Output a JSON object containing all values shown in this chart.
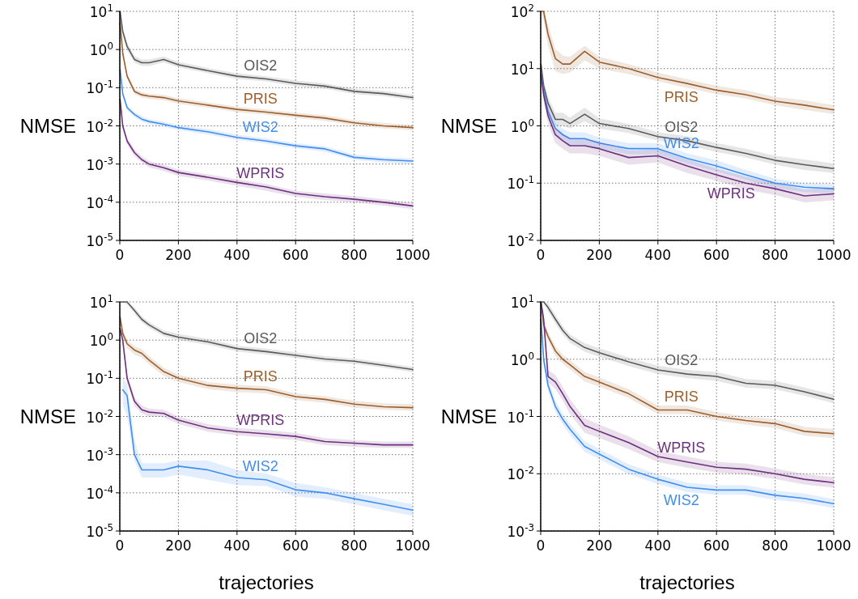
{
  "chart_data": [
    {
      "type": "line",
      "ylabel": "NMSE",
      "log": "y",
      "grid": true,
      "line_style": "solid",
      "xlim": [
        0,
        1000
      ],
      "xticks": [
        0,
        200,
        400,
        600,
        800,
        1000
      ],
      "ylim": [
        1e-05,
        10
      ],
      "yticks": [
        {
          "value": 1e-05,
          "label": "10$^{-5}$"
        },
        {
          "value": 0.0001,
          "label": "10$^{-4}$"
        },
        {
          "value": 0.001,
          "label": "10$^{-3}$"
        },
        {
          "value": 0.01,
          "label": "10$^{-2}$"
        },
        {
          "value": 0.1,
          "label": "10$^{-1}$"
        },
        {
          "value": 1,
          "label": "10$^{0}$"
        },
        {
          "value": 10,
          "label": "10$^{1}$"
        }
      ],
      "x": [
        1,
        10,
        25,
        50,
        75,
        100,
        150,
        200,
        300,
        400,
        500,
        600,
        700,
        800,
        900,
        1000
      ],
      "series": [
        {
          "name": "OIS2",
          "color": "#5a5a5a",
          "values": [
            10,
            3,
            1.2,
            0.55,
            0.45,
            0.45,
            0.55,
            0.4,
            0.28,
            0.2,
            0.17,
            0.13,
            0.11,
            0.08,
            0.07,
            0.055
          ],
          "lower": [
            8,
            2.4,
            0.95,
            0.45,
            0.37,
            0.37,
            0.46,
            0.34,
            0.24,
            0.17,
            0.145,
            0.11,
            0.094,
            0.068,
            0.06,
            0.047
          ],
          "upper": [
            10,
            3.7,
            1.5,
            0.68,
            0.55,
            0.55,
            0.66,
            0.48,
            0.33,
            0.24,
            0.2,
            0.155,
            0.13,
            0.095,
            0.083,
            0.065
          ]
        },
        {
          "name": "PRIS",
          "color": "#9c5f2c",
          "values": [
            5,
            0.8,
            0.2,
            0.08,
            0.065,
            0.06,
            0.055,
            0.045,
            0.035,
            0.027,
            0.023,
            0.019,
            0.016,
            0.012,
            0.01,
            0.009
          ],
          "lower": [
            4,
            0.65,
            0.17,
            0.068,
            0.055,
            0.051,
            0.047,
            0.038,
            0.03,
            0.023,
            0.0195,
            0.016,
            0.0136,
            0.0102,
            0.0085,
            0.0076
          ],
          "upper": [
            6,
            0.95,
            0.24,
            0.094,
            0.076,
            0.07,
            0.065,
            0.053,
            0.041,
            0.032,
            0.027,
            0.022,
            0.019,
            0.014,
            0.012,
            0.0106
          ]
        },
        {
          "name": "WIS2",
          "color": "#3f8ef0",
          "values": [
            0.3,
            0.07,
            0.03,
            0.02,
            0.015,
            0.013,
            0.011,
            0.009,
            0.007,
            0.005,
            0.004,
            0.003,
            0.0025,
            0.0015,
            0.0013,
            0.0012
          ],
          "lower": [
            0.25,
            0.06,
            0.026,
            0.017,
            0.013,
            0.011,
            0.0094,
            0.0077,
            0.006,
            0.0043,
            0.0034,
            0.0026,
            0.0021,
            0.0013,
            0.0011,
            0.001
          ],
          "upper": [
            0.36,
            0.083,
            0.035,
            0.023,
            0.018,
            0.015,
            0.013,
            0.0105,
            0.0082,
            0.0059,
            0.0047,
            0.0035,
            0.0029,
            0.0018,
            0.0015,
            0.0014
          ]
        },
        {
          "name": "WPRIS",
          "color": "#6e2f7e",
          "values": [
            0.05,
            0.01,
            0.004,
            0.002,
            0.0013,
            0.001,
            0.0008,
            0.0006,
            0.00045,
            0.00033,
            0.00025,
            0.00017,
            0.00014,
            0.00012,
            0.0001,
            8e-05
          ],
          "lower": [
            0.041,
            0.0082,
            0.0033,
            0.0016,
            0.0011,
            0.00082,
            0.00066,
            0.00049,
            0.00037,
            0.00027,
            0.0002,
            0.00014,
            0.000115,
            0.0001,
            8.2e-05,
            6.6e-05
          ],
          "upper": [
            0.06,
            0.012,
            0.0048,
            0.0024,
            0.0016,
            0.0012,
            0.00096,
            0.00072,
            0.00054,
            0.0004,
            0.0003,
            0.0002,
            0.00017,
            0.000144,
            0.00012,
            9.6e-05
          ]
        }
      ]
    },
    {
      "type": "line",
      "ylabel": "NMSE",
      "log": "y",
      "grid": true,
      "line_style": "solid",
      "xlim": [
        0,
        1000
      ],
      "xticks": [
        0,
        200,
        400,
        600,
        800,
        1000
      ],
      "ylim": [
        0.01,
        100
      ],
      "yticks": [
        {
          "value": 0.01,
          "label": "10$^{-2}$"
        },
        {
          "value": 0.1,
          "label": "10$^{-1}$"
        },
        {
          "value": 1,
          "label": "10$^{0}$"
        },
        {
          "value": 10,
          "label": "10$^{1}$"
        },
        {
          "value": 100,
          "label": "10$^{2}$"
        }
      ],
      "x": [
        1,
        10,
        25,
        50,
        75,
        100,
        150,
        200,
        300,
        400,
        500,
        600,
        700,
        800,
        900,
        1000
      ],
      "series": [
        {
          "name": "PRIS",
          "color": "#9c5f2c",
          "values": [
            100,
            100,
            40,
            15,
            12,
            12,
            20,
            13,
            10,
            7,
            5.5,
            4.2,
            3.5,
            2.7,
            2.3,
            1.9
          ],
          "lower": [
            100,
            70,
            25,
            9,
            8,
            8.5,
            14,
            10,
            8,
            6,
            4.6,
            3.6,
            3,
            2.3,
            1.9,
            1.6
          ],
          "upper": [
            100,
            100,
            60,
            22,
            17,
            16,
            25,
            16,
            12,
            8.5,
            6.5,
            5,
            4.2,
            3.2,
            2.8,
            2.3
          ]
        },
        {
          "name": "OIS2",
          "color": "#5a5a5a",
          "values": [
            12,
            5,
            2.5,
            1.3,
            1.3,
            1.1,
            1.6,
            1.1,
            0.9,
            0.65,
            0.55,
            0.42,
            0.33,
            0.25,
            0.21,
            0.18
          ],
          "lower": [
            10,
            4,
            1.9,
            1,
            1,
            0.9,
            1.2,
            0.9,
            0.75,
            0.55,
            0.46,
            0.35,
            0.28,
            0.21,
            0.17,
            0.15
          ],
          "upper": [
            14,
            6.2,
            3.2,
            1.7,
            1.7,
            1.4,
            2.1,
            1.35,
            1.08,
            0.78,
            0.66,
            0.5,
            0.4,
            0.3,
            0.26,
            0.22
          ]
        },
        {
          "name": "WIS2",
          "color": "#3f8ef0",
          "values": [
            9,
            4,
            1.8,
            0.9,
            0.7,
            0.6,
            0.6,
            0.5,
            0.4,
            0.4,
            0.27,
            0.2,
            0.14,
            0.1,
            0.085,
            0.08
          ],
          "lower": [
            7.5,
            3.2,
            1.4,
            0.7,
            0.55,
            0.47,
            0.47,
            0.4,
            0.32,
            0.32,
            0.22,
            0.16,
            0.115,
            0.083,
            0.07,
            0.066
          ],
          "upper": [
            11,
            5,
            2.3,
            1.15,
            0.9,
            0.77,
            0.77,
            0.63,
            0.5,
            0.5,
            0.33,
            0.25,
            0.17,
            0.12,
            0.1,
            0.097
          ]
        },
        {
          "name": "WPRIS",
          "color": "#6e2f7e",
          "values": [
            8,
            3.5,
            1.5,
            0.7,
            0.55,
            0.45,
            0.45,
            0.4,
            0.28,
            0.3,
            0.2,
            0.14,
            0.1,
            0.08,
            0.06,
            0.065
          ],
          "lower": [
            6.5,
            2.7,
            1.1,
            0.5,
            0.4,
            0.33,
            0.33,
            0.3,
            0.21,
            0.23,
            0.15,
            0.11,
            0.077,
            0.062,
            0.046,
            0.05
          ],
          "upper": [
            10,
            4.5,
            2,
            0.95,
            0.75,
            0.6,
            0.6,
            0.53,
            0.37,
            0.39,
            0.26,
            0.18,
            0.13,
            0.1,
            0.078,
            0.084
          ]
        }
      ]
    },
    {
      "type": "line",
      "ylabel": "NMSE",
      "xlabel": "trajectories",
      "log": "y",
      "grid": true,
      "line_style": "solid",
      "xlim": [
        0,
        1000
      ],
      "xticks": [
        0,
        200,
        400,
        600,
        800,
        1000
      ],
      "ylim": [
        1e-05,
        10
      ],
      "yticks": [
        {
          "value": 1e-05,
          "label": "10$^{-5}$"
        },
        {
          "value": 0.0001,
          "label": "10$^{-4}$"
        },
        {
          "value": 0.001,
          "label": "10$^{-3}$"
        },
        {
          "value": 0.01,
          "label": "10$^{-2}$"
        },
        {
          "value": 0.1,
          "label": "10$^{-1}$"
        },
        {
          "value": 1,
          "label": "10$^{0}$"
        },
        {
          "value": 10,
          "label": "10$^{1}$"
        }
      ],
      "x": [
        1,
        10,
        25,
        50,
        75,
        100,
        150,
        200,
        300,
        400,
        500,
        600,
        700,
        800,
        900,
        1000
      ],
      "series": [
        {
          "name": "OIS2",
          "color": "#5a5a5a",
          "values": [
            10,
            10,
            10,
            6,
            3.5,
            2.5,
            1.5,
            1.2,
            0.9,
            0.6,
            0.5,
            0.4,
            0.32,
            0.28,
            0.22,
            0.17
          ],
          "lower": [
            10,
            10,
            8.5,
            5,
            2.9,
            2.1,
            1.25,
            1,
            0.76,
            0.5,
            0.42,
            0.34,
            0.27,
            0.24,
            0.19,
            0.145
          ],
          "upper": [
            10,
            10,
            10,
            7.2,
            4.2,
            3,
            1.8,
            1.45,
            1.08,
            0.72,
            0.6,
            0.48,
            0.38,
            0.33,
            0.26,
            0.2
          ]
        },
        {
          "name": "PRIS",
          "color": "#9c5f2c",
          "values": [
            4,
            1.5,
            0.8,
            0.55,
            0.45,
            0.3,
            0.15,
            0.1,
            0.065,
            0.055,
            0.05,
            0.033,
            0.028,
            0.021,
            0.018,
            0.017
          ],
          "lower": [
            3.2,
            1.2,
            0.62,
            0.42,
            0.35,
            0.23,
            0.115,
            0.08,
            0.052,
            0.044,
            0.04,
            0.027,
            0.023,
            0.017,
            0.015,
            0.014
          ],
          "upper": [
            5,
            1.9,
            1,
            0.7,
            0.58,
            0.38,
            0.19,
            0.125,
            0.08,
            0.068,
            0.062,
            0.04,
            0.034,
            0.026,
            0.022,
            0.021
          ]
        },
        {
          "name": "WPRIS",
          "color": "#6e2f7e",
          "values": [
            2,
            1,
            0.1,
            0.025,
            0.015,
            0.013,
            0.012,
            0.008,
            0.005,
            0.004,
            0.0035,
            0.003,
            0.0022,
            0.002,
            0.0018,
            0.0018
          ],
          "lower": [
            1.6,
            0.8,
            0.075,
            0.019,
            0.012,
            0.01,
            0.0095,
            0.0064,
            0.004,
            0.0032,
            0.0028,
            0.0024,
            0.0018,
            0.0016,
            0.0015,
            0.0015
          ],
          "upper": [
            2.5,
            1.25,
            0.13,
            0.032,
            0.019,
            0.016,
            0.015,
            0.01,
            0.0063,
            0.005,
            0.0044,
            0.0037,
            0.0027,
            0.0024,
            0.0022,
            0.0022
          ]
        },
        {
          "name": "WIS2",
          "color": "#3f8ef0",
          "values": [
            null,
            0.05,
            0.035,
            0.001,
            0.0004,
            0.0004,
            0.0004,
            0.0005,
            0.0004,
            0.00025,
            0.00022,
            0.00012,
            0.0001,
            7e-05,
            5e-05,
            3.5e-05
          ],
          "lower": [
            null,
            0.02,
            0.01,
            0.0007,
            0.00025,
            0.00025,
            0.00025,
            0.0003,
            0.00022,
            0.00016,
            0.00015,
            8e-05,
            7e-05,
            5e-05,
            3.5e-05,
            2.5e-05
          ],
          "upper": [
            null,
            0.1,
            0.07,
            0.0025,
            0.0006,
            0.0006,
            0.0006,
            0.0007,
            0.0007,
            0.0004,
            0.00032,
            0.00018,
            0.00014,
            0.0001,
            7e-05,
            5e-05
          ]
        }
      ]
    },
    {
      "type": "line",
      "ylabel": "NMSE",
      "xlabel": "trajectories",
      "log": "y",
      "grid": true,
      "line_style": "solid",
      "xlim": [
        0,
        1000
      ],
      "xticks": [
        0,
        200,
        400,
        600,
        800,
        1000
      ],
      "ylim": [
        0.001,
        10
      ],
      "yticks": [
        {
          "value": 0.001,
          "label": "10$^{-3}$"
        },
        {
          "value": 0.01,
          "label": "10$^{-2}$"
        },
        {
          "value": 0.1,
          "label": "10$^{-1}$"
        },
        {
          "value": 1,
          "label": "10$^{0}$"
        },
        {
          "value": 10,
          "label": "10$^{1}$"
        }
      ],
      "x": [
        1,
        10,
        25,
        50,
        75,
        100,
        150,
        200,
        300,
        400,
        500,
        600,
        700,
        800,
        900,
        1000
      ],
      "series": [
        {
          "name": "OIS2",
          "color": "#5a5a5a",
          "values": [
            10,
            10,
            8,
            5,
            3.2,
            2.3,
            1.6,
            1.3,
            0.9,
            0.65,
            0.55,
            0.5,
            0.38,
            0.35,
            0.27,
            0.2
          ],
          "lower": [
            10,
            10,
            6.8,
            4.2,
            2.7,
            1.95,
            1.35,
            1.1,
            0.76,
            0.55,
            0.47,
            0.42,
            0.32,
            0.3,
            0.23,
            0.17
          ],
          "upper": [
            10,
            10,
            9.5,
            6,
            3.8,
            2.7,
            1.9,
            1.55,
            1.07,
            0.77,
            0.65,
            0.6,
            0.45,
            0.42,
            0.32,
            0.24
          ]
        },
        {
          "name": "PRIS",
          "color": "#9c5f2c",
          "values": [
            10,
            4,
            2.5,
            1.4,
            1,
            0.8,
            0.5,
            0.4,
            0.25,
            0.13,
            0.13,
            0.1,
            0.085,
            0.075,
            0.055,
            0.05
          ],
          "lower": [
            10,
            3.3,
            2.1,
            1.15,
            0.83,
            0.66,
            0.41,
            0.33,
            0.21,
            0.11,
            0.11,
            0.085,
            0.072,
            0.063,
            0.046,
            0.042
          ],
          "upper": [
            10,
            4.8,
            3,
            1.7,
            1.2,
            0.97,
            0.6,
            0.48,
            0.3,
            0.155,
            0.155,
            0.12,
            0.1,
            0.09,
            0.066,
            0.06
          ]
        },
        {
          "name": "WPRIS",
          "color": "#6e2f7e",
          "values": [
            10,
            5,
            0.5,
            0.4,
            0.25,
            0.15,
            0.07,
            0.055,
            0.035,
            0.02,
            0.016,
            0.013,
            0.012,
            0.01,
            0.008,
            0.007
          ],
          "lower": [
            10,
            4,
            0.4,
            0.3,
            0.19,
            0.11,
            0.052,
            0.042,
            0.027,
            0.016,
            0.0128,
            0.0105,
            0.0097,
            0.0081,
            0.0065,
            0.0057
          ],
          "upper": [
            10,
            6.3,
            0.65,
            0.53,
            0.33,
            0.2,
            0.093,
            0.072,
            0.045,
            0.025,
            0.02,
            0.016,
            0.015,
            0.0124,
            0.0099,
            0.0087
          ]
        },
        {
          "name": "WIS2",
          "color": "#3f8ef0",
          "values": [
            5,
            1,
            0.35,
            0.15,
            0.09,
            0.06,
            0.03,
            0.022,
            0.012,
            0.008,
            0.0058,
            0.0052,
            0.0052,
            0.0042,
            0.0037,
            0.003
          ],
          "lower": [
            4,
            0.8,
            0.28,
            0.12,
            0.072,
            0.048,
            0.024,
            0.018,
            0.0098,
            0.0066,
            0.0048,
            0.0043,
            0.0043,
            0.0035,
            0.0031,
            0.0025
          ],
          "upper": [
            6.2,
            1.25,
            0.44,
            0.19,
            0.11,
            0.075,
            0.037,
            0.027,
            0.0147,
            0.0097,
            0.007,
            0.0063,
            0.0063,
            0.0051,
            0.0045,
            0.0036
          ]
        }
      ]
    }
  ]
}
